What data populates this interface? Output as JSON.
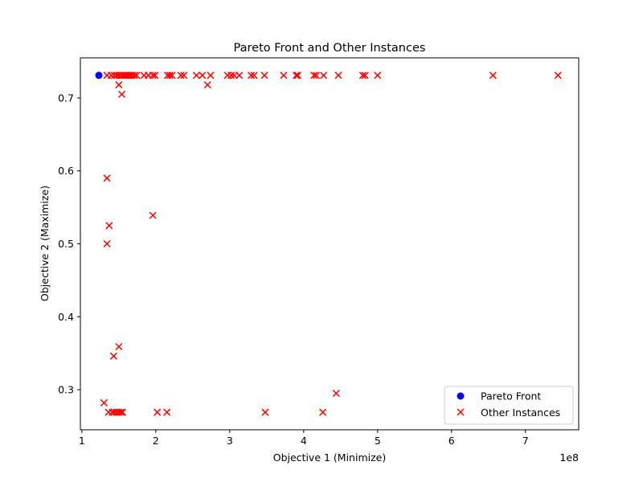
{
  "chart_data": {
    "type": "scatter",
    "title": "Pareto Front and Other Instances",
    "xlabel": "Objective 1 (Minimize)",
    "ylabel": "Objective 2 (Maximize)",
    "x_offset_label": "1e8",
    "xlim": [
      0.98,
      7.72
    ],
    "ylim": [
      0.245,
      0.755
    ],
    "xticks": [
      1,
      2,
      3,
      4,
      5,
      6,
      7
    ],
    "yticks": [
      0.3,
      0.4,
      0.5,
      0.6,
      0.7
    ],
    "xtick_labels": [
      "1",
      "2",
      "3",
      "4",
      "5",
      "6",
      "7"
    ],
    "ytick_labels": [
      "0.3",
      "0.4",
      "0.5",
      "0.6",
      "0.7"
    ],
    "grid": false,
    "legend_position": "lower-right",
    "series": [
      {
        "name": "Pareto Front",
        "marker": "circle",
        "color": "#0000ff",
        "points": [
          [
            1.23,
            0.731
          ]
        ]
      },
      {
        "name": "Other Instances",
        "marker": "x",
        "color": "#ff0000",
        "points": [
          [
            1.34,
            0.731
          ],
          [
            1.4,
            0.731
          ],
          [
            1.44,
            0.731
          ],
          [
            1.47,
            0.731
          ],
          [
            1.5,
            0.731
          ],
          [
            1.53,
            0.731
          ],
          [
            1.56,
            0.731
          ],
          [
            1.58,
            0.731
          ],
          [
            1.6,
            0.731
          ],
          [
            1.62,
            0.731
          ],
          [
            1.64,
            0.731
          ],
          [
            1.66,
            0.731
          ],
          [
            1.68,
            0.731
          ],
          [
            1.71,
            0.731
          ],
          [
            1.74,
            0.731
          ],
          [
            1.84,
            0.731
          ],
          [
            1.9,
            0.731
          ],
          [
            1.96,
            0.731
          ],
          [
            1.99,
            0.731
          ],
          [
            2.16,
            0.731
          ],
          [
            2.19,
            0.731
          ],
          [
            2.22,
            0.731
          ],
          [
            2.34,
            0.731
          ],
          [
            2.38,
            0.731
          ],
          [
            2.55,
            0.731
          ],
          [
            2.63,
            0.731
          ],
          [
            2.74,
            0.731
          ],
          [
            2.97,
            0.731
          ],
          [
            3.02,
            0.731
          ],
          [
            3.06,
            0.731
          ],
          [
            3.13,
            0.731
          ],
          [
            3.29,
            0.731
          ],
          [
            3.33,
            0.731
          ],
          [
            3.47,
            0.731
          ],
          [
            3.73,
            0.731
          ],
          [
            3.9,
            0.731
          ],
          [
            3.92,
            0.731
          ],
          [
            4.14,
            0.731
          ],
          [
            4.17,
            0.731
          ],
          [
            4.27,
            0.731
          ],
          [
            4.47,
            0.731
          ],
          [
            4.8,
            0.731
          ],
          [
            4.83,
            0.731
          ],
          [
            5.0,
            0.731
          ],
          [
            6.56,
            0.731
          ],
          [
            7.44,
            0.731
          ],
          [
            1.5,
            0.718
          ],
          [
            2.7,
            0.718
          ],
          [
            1.54,
            0.705
          ],
          [
            1.34,
            0.59
          ],
          [
            1.96,
            0.539
          ],
          [
            1.37,
            0.525
          ],
          [
            1.34,
            0.5
          ],
          [
            1.5,
            0.359
          ],
          [
            1.43,
            0.346
          ],
          [
            4.44,
            0.295
          ],
          [
            1.3,
            0.282
          ],
          [
            1.36,
            0.269
          ],
          [
            1.41,
            0.269
          ],
          [
            1.44,
            0.269
          ],
          [
            1.47,
            0.269
          ],
          [
            1.5,
            0.269
          ],
          [
            1.53,
            0.269
          ],
          [
            1.55,
            0.269
          ],
          [
            2.02,
            0.269
          ],
          [
            2.15,
            0.269
          ],
          [
            3.48,
            0.269
          ],
          [
            4.26,
            0.269
          ]
        ]
      }
    ]
  }
}
